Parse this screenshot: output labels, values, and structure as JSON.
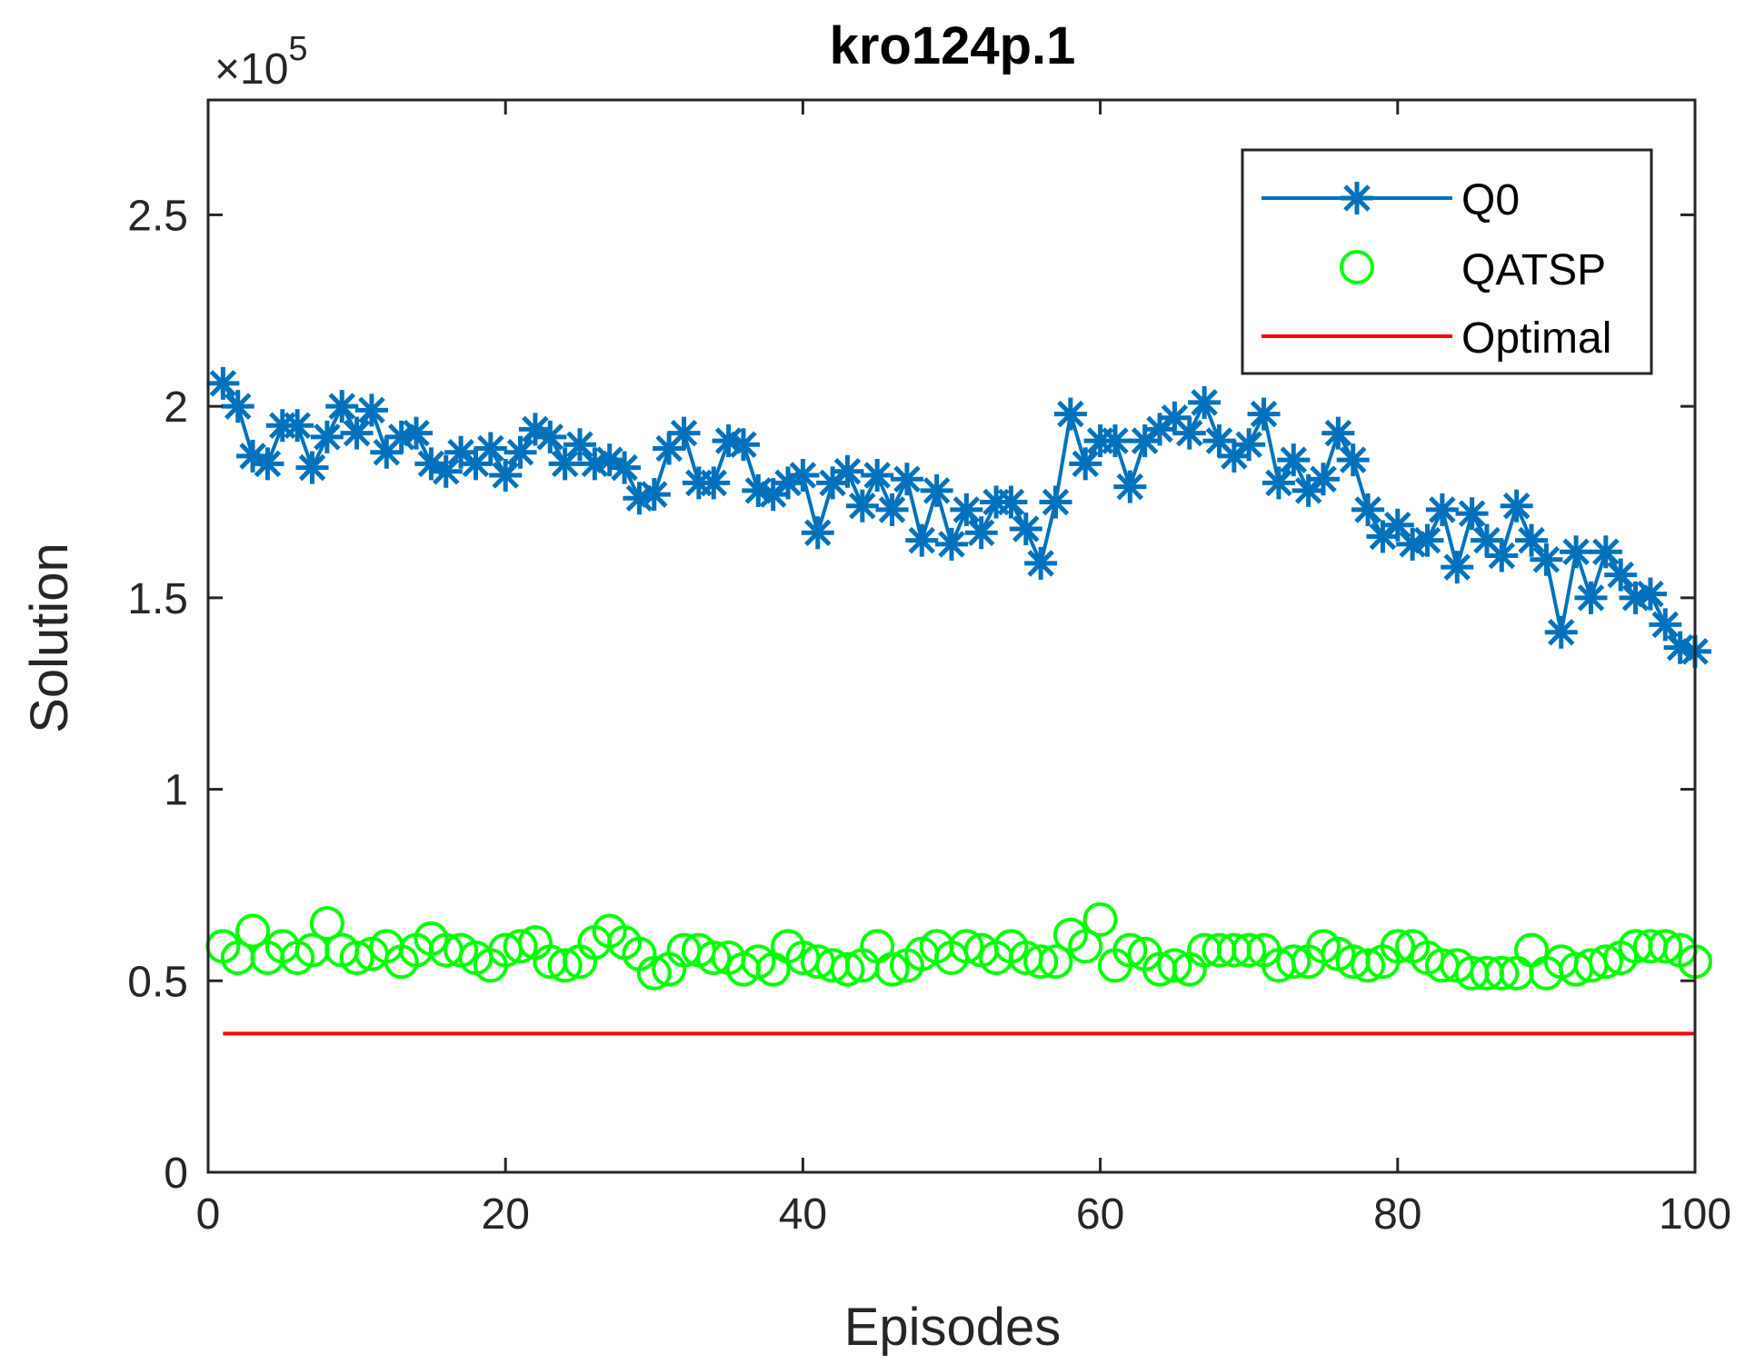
{
  "chart_data": {
    "type": "line",
    "title": "kro124p.1",
    "xlabel": "Episodes",
    "ylabel": "Solution",
    "xlim": [
      0,
      100
    ],
    "ylim": [
      0,
      280000
    ],
    "xticks": [
      0,
      20,
      40,
      60,
      80,
      100
    ],
    "xtick_labels": [
      "0",
      "20",
      "40",
      "60",
      "80",
      "100"
    ],
    "yticks": [
      0,
      50000,
      100000,
      150000,
      200000,
      250000
    ],
    "ytick_labels": [
      "0",
      "0.5",
      "1",
      "1.5",
      "2",
      "2.5"
    ],
    "exponent_label": {
      "prefix": "×10",
      "power": "5"
    },
    "legend_position": "top-right",
    "series": [
      {
        "name": "Q0",
        "style": "line-with-asterisk-markers",
        "color": "#0072BD",
        "x": [
          1,
          2,
          3,
          4,
          5,
          6,
          7,
          8,
          9,
          10,
          11,
          12,
          13,
          14,
          15,
          16,
          17,
          18,
          19,
          20,
          21,
          22,
          23,
          24,
          25,
          26,
          27,
          28,
          29,
          30,
          31,
          32,
          33,
          34,
          35,
          36,
          37,
          38,
          39,
          40,
          41,
          42,
          43,
          44,
          45,
          46,
          47,
          48,
          49,
          50,
          51,
          52,
          53,
          54,
          55,
          56,
          57,
          58,
          59,
          60,
          61,
          62,
          63,
          64,
          65,
          66,
          67,
          68,
          69,
          70,
          71,
          72,
          73,
          74,
          75,
          76,
          77,
          78,
          79,
          80,
          81,
          82,
          83,
          84,
          85,
          86,
          87,
          88,
          89,
          90,
          91,
          92,
          93,
          94,
          95,
          96,
          97,
          98,
          99,
          100
        ],
        "values": [
          206000,
          200000,
          187000,
          185000,
          195000,
          195000,
          184000,
          192000,
          200000,
          193000,
          199000,
          188000,
          192000,
          193000,
          185000,
          183000,
          188000,
          185000,
          189000,
          182000,
          188000,
          194000,
          192000,
          185000,
          190000,
          185000,
          186000,
          184000,
          176000,
          177000,
          189000,
          193000,
          180000,
          180000,
          191000,
          190000,
          178000,
          177000,
          180000,
          182000,
          167000,
          180000,
          183000,
          174000,
          182000,
          173000,
          181000,
          165000,
          178000,
          164000,
          173000,
          167000,
          175000,
          175000,
          168000,
          159000,
          175000,
          198000,
          185000,
          191000,
          191000,
          179000,
          191000,
          194000,
          197000,
          193000,
          201000,
          191000,
          187000,
          190000,
          198000,
          180000,
          186000,
          178000,
          181000,
          193000,
          186000,
          173000,
          166000,
          169000,
          164000,
          165000,
          173000,
          158000,
          172000,
          165000,
          161000,
          174000,
          165000,
          160000,
          141000,
          162000,
          150000,
          162000,
          156000,
          150000,
          151000,
          143000,
          137000,
          136000
        ]
      },
      {
        "name": "QATSP",
        "style": "circle-markers",
        "color": "#00FF00",
        "x": [
          1,
          2,
          3,
          4,
          5,
          6,
          7,
          8,
          9,
          10,
          11,
          12,
          13,
          14,
          15,
          16,
          17,
          18,
          19,
          20,
          21,
          22,
          23,
          24,
          25,
          26,
          27,
          28,
          29,
          30,
          31,
          32,
          33,
          34,
          35,
          36,
          37,
          38,
          39,
          40,
          41,
          42,
          43,
          44,
          45,
          46,
          47,
          48,
          49,
          50,
          51,
          52,
          53,
          54,
          55,
          56,
          57,
          58,
          59,
          60,
          61,
          62,
          63,
          64,
          65,
          66,
          67,
          68,
          69,
          70,
          71,
          72,
          73,
          74,
          75,
          76,
          77,
          78,
          79,
          80,
          81,
          82,
          83,
          84,
          85,
          86,
          87,
          88,
          89,
          90,
          91,
          92,
          93,
          94,
          95,
          96,
          97,
          98,
          99,
          100
        ],
        "values": [
          59000,
          56000,
          63000,
          56000,
          59000,
          56000,
          58000,
          65000,
          58000,
          56000,
          57000,
          59000,
          55000,
          58000,
          61000,
          58000,
          58000,
          56000,
          54000,
          58000,
          59000,
          60000,
          55000,
          54000,
          55000,
          60000,
          63000,
          60000,
          57000,
          52000,
          53000,
          58000,
          58000,
          56000,
          56000,
          53000,
          55000,
          53000,
          59000,
          56000,
          55000,
          54000,
          53000,
          54000,
          59000,
          53000,
          54000,
          57000,
          59000,
          56000,
          59000,
          58000,
          56000,
          59000,
          56000,
          55000,
          55000,
          62000,
          59000,
          66000,
          54000,
          58000,
          57000,
          53000,
          54000,
          53000,
          58000,
          58000,
          58000,
          58000,
          58000,
          54000,
          55000,
          55000,
          59000,
          57000,
          55000,
          54000,
          55000,
          59000,
          59000,
          56000,
          54000,
          54000,
          52000,
          52000,
          52000,
          52000,
          58000,
          52000,
          55000,
          53000,
          54000,
          55000,
          56000,
          59000,
          59000,
          59000,
          58000,
          55000
        ]
      },
      {
        "name": "Optimal",
        "style": "line",
        "color": "#FF0000",
        "x": [
          1,
          100
        ],
        "values": [
          36230,
          36230
        ]
      }
    ]
  }
}
